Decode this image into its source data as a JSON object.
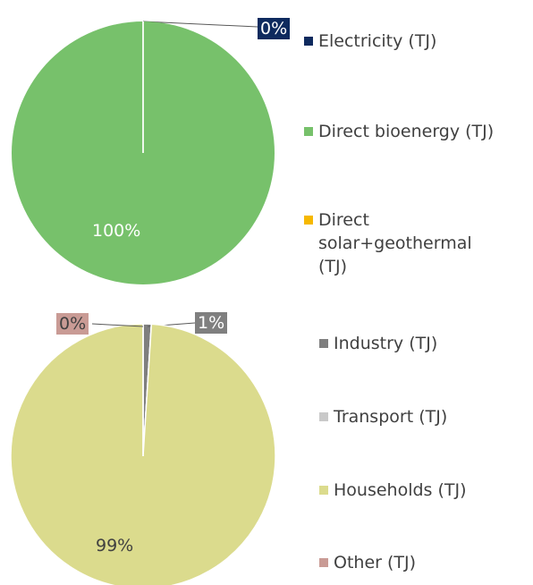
{
  "chart_data": [
    {
      "type": "pie",
      "categories": [
        "Electricity (TJ)",
        "Direct bioenergy (TJ)",
        "Direct solar+geothermal (TJ)"
      ],
      "values": [
        0,
        100,
        0
      ],
      "value_labels": [
        "0%",
        "100%",
        null
      ],
      "colors": [
        "#0e2a5e",
        "#77c16b",
        "#f6b800"
      ]
    },
    {
      "type": "pie",
      "categories": [
        "Industry (TJ)",
        "Transport (TJ)",
        "Households (TJ)",
        "Other (TJ)"
      ],
      "values": [
        1,
        0,
        99,
        0
      ],
      "value_labels": [
        "1%",
        null,
        "99%",
        "0%"
      ],
      "colors": [
        "#7f7f7f",
        "#c9c9c9",
        "#dbdb8d",
        "#c99b95"
      ]
    }
  ]
}
